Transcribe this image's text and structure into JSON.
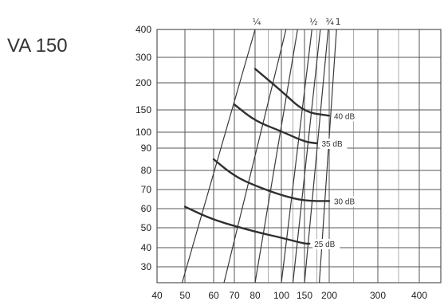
{
  "title": "VA 150",
  "colors": {
    "grid": "#555555",
    "curve": "#2f2f2f",
    "line": "#3a3a3a",
    "text": "#222222"
  },
  "chart_data": {
    "type": "line",
    "y_ticks": [
      "400",
      "300",
      "200",
      "150",
      "100",
      "90",
      "80",
      "70",
      "60",
      "50",
      "40",
      "30"
    ],
    "x_ticks": [
      "40",
      "50",
      "60",
      "70",
      "80",
      "100",
      "150",
      "200",
      "300",
      "400"
    ],
    "diagonal_labels": [
      "¼",
      "½",
      "¾",
      "1"
    ],
    "curves": [
      {
        "name": "40 dB",
        "label": "40 dB",
        "points": [
          [
            80,
            255
          ],
          [
            100,
            185
          ],
          [
            150,
            145
          ],
          [
            200,
            137
          ]
        ]
      },
      {
        "name": "35 dB",
        "label": "35 dB",
        "points": [
          [
            70,
            160
          ],
          [
            80,
            125
          ],
          [
            100,
            102
          ],
          [
            150,
            94
          ],
          [
            175,
            93
          ]
        ]
      },
      {
        "name": "30 dB",
        "label": "30 dB",
        "points": [
          [
            60,
            85
          ],
          [
            70,
            77
          ],
          [
            80,
            72
          ],
          [
            100,
            67
          ],
          [
            150,
            64
          ],
          [
            200,
            64
          ]
        ]
      },
      {
        "name": "25 dB",
        "label": "25 dB",
        "points": [
          [
            50,
            61
          ],
          [
            60,
            54
          ],
          [
            80,
            48
          ],
          [
            100,
            45
          ],
          [
            150,
            42
          ],
          [
            160,
            42
          ]
        ]
      }
    ],
    "diagonals": [
      {
        "label": "¼",
        "points": [
          [
            49,
            22
          ],
          [
            80,
            400
          ]
        ]
      },
      {
        "label": "",
        "points": [
          [
            65,
            22
          ],
          [
            110,
            400
          ]
        ]
      },
      {
        "label": "",
        "points": [
          [
            80,
            22
          ],
          [
            135,
            400
          ]
        ]
      },
      {
        "label": "½",
        "points": [
          [
            100,
            22
          ],
          [
            165,
            400
          ]
        ]
      },
      {
        "label": "",
        "points": [
          [
            125,
            22
          ],
          [
            182,
            400
          ]
        ]
      },
      {
        "label": "¾",
        "points": [
          [
            150,
            22
          ],
          [
            198,
            400
          ]
        ]
      },
      {
        "label": "1",
        "points": [
          [
            180,
            22
          ],
          [
            215,
            400
          ]
        ]
      }
    ]
  }
}
